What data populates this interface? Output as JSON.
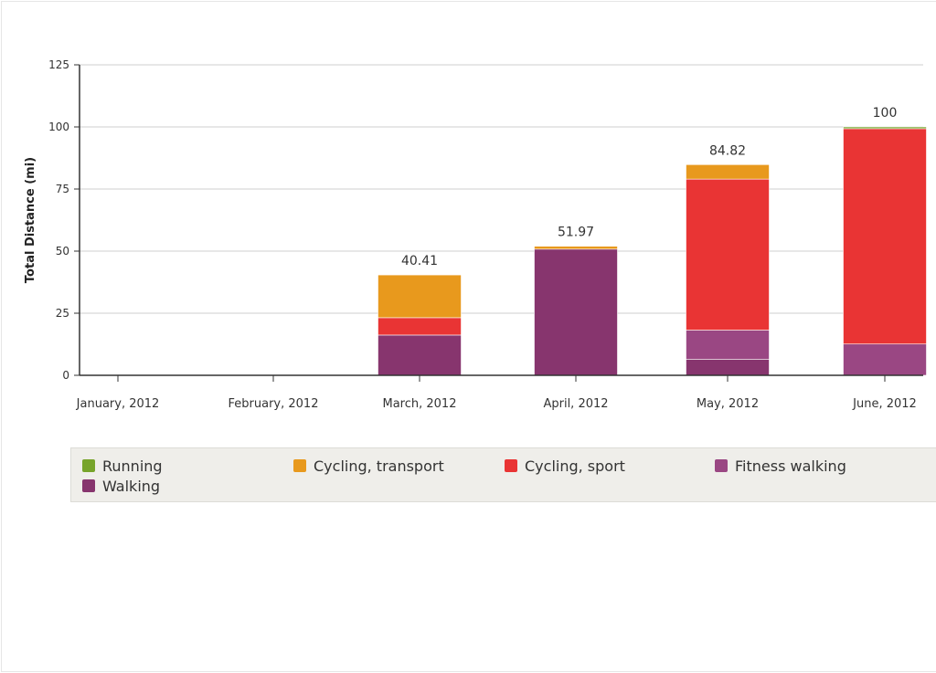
{
  "chart_data": {
    "type": "bar",
    "stacked": true,
    "title": "",
    "xlabel": "",
    "ylabel": "Total Distance (mi)",
    "ylim": [
      0,
      125
    ],
    "yticks": [
      0,
      25,
      50,
      75,
      100,
      125
    ],
    "grid": true,
    "legend_position": "bottom",
    "categories": [
      "January, 2012",
      "February, 2012",
      "March, 2012",
      "April, 2012",
      "May, 2012",
      "June, 2012"
    ],
    "totals": [
      null,
      null,
      "40.41",
      "51.97",
      "84.82",
      "100"
    ],
    "series": [
      {
        "name": "Walking",
        "color": "#87356e",
        "values": [
          0,
          0,
          16.2,
          50.8,
          6.5,
          0
        ]
      },
      {
        "name": "Fitness walking",
        "color": "#9a4783",
        "values": [
          0,
          0,
          0,
          0,
          11.7,
          12.6
        ]
      },
      {
        "name": "Cycling, sport",
        "color": "#e93434",
        "values": [
          0,
          0,
          7.0,
          0,
          60.8,
          86.7
        ]
      },
      {
        "name": "Cycling, transport",
        "color": "#e8991d",
        "values": [
          0,
          0,
          17.21,
          1.17,
          5.82,
          0
        ]
      },
      {
        "name": "Running",
        "color": "#77a42b",
        "values": [
          0,
          0,
          0,
          0,
          0,
          0.7
        ]
      }
    ]
  },
  "legend": {
    "items": [
      {
        "label": "Running",
        "color": "#77a42b"
      },
      {
        "label": "Cycling, transport",
        "color": "#e8991d"
      },
      {
        "label": "Cycling, sport",
        "color": "#e93434"
      },
      {
        "label": "Fitness walking",
        "color": "#9a4783"
      },
      {
        "label": "Walking",
        "color": "#87356e"
      }
    ]
  }
}
